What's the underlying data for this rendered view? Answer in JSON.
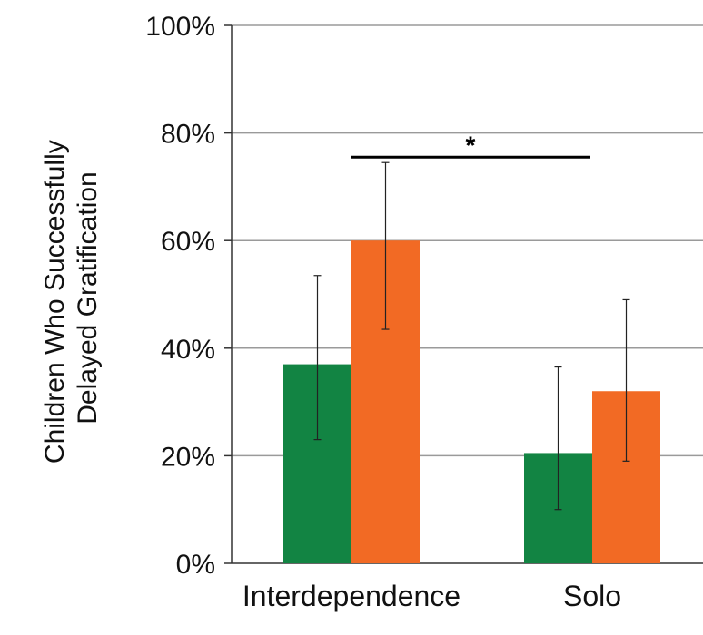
{
  "chart_data": {
    "type": "bar",
    "categories": [
      "Interdependence",
      "Solo"
    ],
    "series": [
      {
        "values": [
          37,
          20.5
        ],
        "error_low": [
          23,
          10
        ],
        "error_high": [
          53.5,
          36.5
        ]
      },
      {
        "values": [
          60,
          32
        ],
        "error_low": [
          43.5,
          19
        ],
        "error_high": [
          74.5,
          49
        ]
      }
    ],
    "ylabel_lines": [
      "Children Who Successfully",
      "Delayed Gratification"
    ],
    "ylim": [
      0,
      100
    ],
    "yticks": [
      {
        "value": 0,
        "label": "0%"
      },
      {
        "value": 20,
        "label": "20%"
      },
      {
        "value": 40,
        "label": "40%"
      },
      {
        "value": 60,
        "label": "60%"
      },
      {
        "value": 80,
        "label": "80%"
      },
      {
        "value": 100,
        "label": "100%"
      }
    ],
    "grid": true,
    "legend": "none",
    "significance": {
      "label": "*",
      "y": 75.5,
      "x_from": 0,
      "x_to": 1
    },
    "colors": {
      "series_1": "#128443",
      "series_2": "#f26a24",
      "grid": "#9a9a9a"
    }
  }
}
